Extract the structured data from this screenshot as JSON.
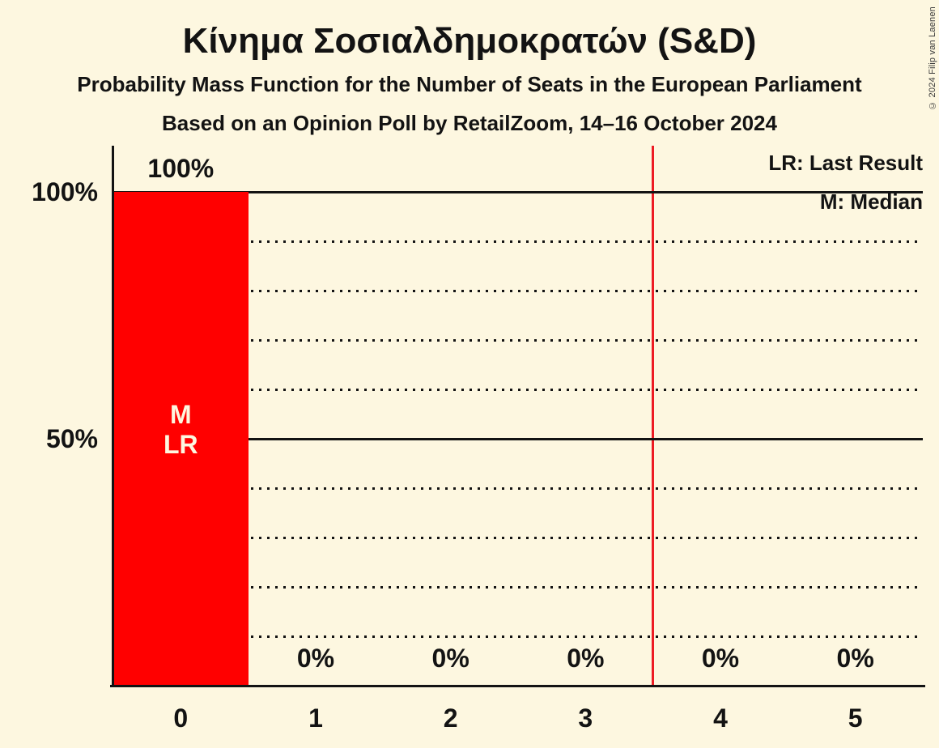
{
  "chart_data": {
    "type": "bar",
    "title": "Κίνημα Σοσιαλδημοκρατών (S&D)",
    "subtitle": "Probability Mass Function for the Number of Seats in the European Parliament",
    "source_line": "Based on an Opinion Poll by RetailZoom, 14–16 October 2024",
    "xlabel": "",
    "ylabel": "",
    "categories": [
      "0",
      "1",
      "2",
      "3",
      "4",
      "5"
    ],
    "values": [
      100,
      0,
      0,
      0,
      0,
      0
    ],
    "value_labels": [
      "100%",
      "0%",
      "0%",
      "0%",
      "0%",
      "0%"
    ],
    "ylim": [
      0,
      109
    ],
    "ytick_solid": [
      100,
      50
    ],
    "ytick_solid_labels": [
      "100%",
      "50%"
    ],
    "ytick_dotted": [
      90,
      80,
      70,
      60,
      40,
      30,
      20,
      10
    ],
    "grid": "solid major lines at 50% and 100%, dotted lines every 10%",
    "median_category": "0",
    "last_result_category": "0",
    "in_bar_labels": [
      "M",
      "LR"
    ],
    "in_bar_labels_category_index": 0,
    "red_line_x": 3.5,
    "legend": [
      "LR: Last Result",
      "M: Median"
    ],
    "legend_position": "top-right"
  },
  "colors": {
    "background": "#FDF7E0",
    "bar": "#FF0000",
    "red_line": "#ED1C24",
    "text": "#131313",
    "in_bar_text": "#FDF7E0"
  },
  "copyright": "© 2024 Filip van Laenen"
}
